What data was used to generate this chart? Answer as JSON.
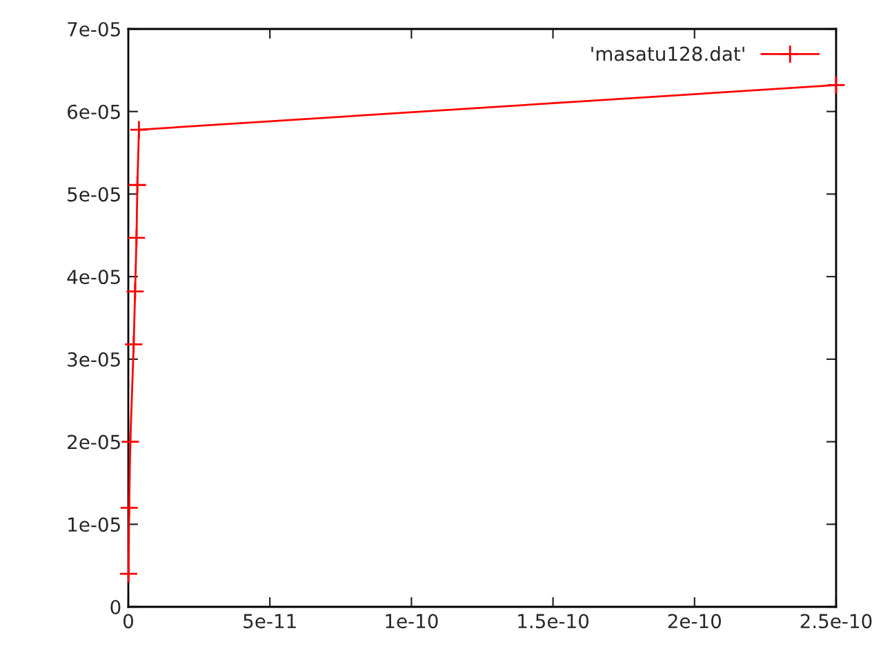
{
  "chart_data": {
    "type": "line",
    "marker": "cross",
    "legend": "top right",
    "grid": false,
    "series": [
      {
        "name": "'masatu128.dat'",
        "color": "#ff0000",
        "x": [
          1e-13,
          3e-13,
          7e-13,
          1.9e-12,
          2.4e-12,
          2.9e-12,
          3.2e-12,
          3.75e-12,
          2.5e-10
        ],
        "values": [
          4e-06,
          1.2e-05,
          2e-05,
          3.18e-05,
          3.82e-05,
          4.47e-05,
          5.11e-05,
          5.78e-05,
          6.32e-05
        ]
      }
    ],
    "xlim": [
      0,
      2.5e-10
    ],
    "xticks": [
      0,
      {
        "value": 5e-11,
        "label": "5e-11"
      },
      {
        "value": 1e-10,
        "label": "1e-10"
      },
      {
        "value": 1.5e-10,
        "label": "1.5e-10"
      },
      {
        "value": 2e-10,
        "label": "2e-10"
      },
      {
        "value": 2.5e-10,
        "label": "2.5e-10"
      }
    ],
    "ylim": [
      0,
      7e-05
    ],
    "yticks": [
      0,
      {
        "value": 1e-05,
        "label": "1e-05"
      },
      {
        "value": 2e-05,
        "label": "2e-05"
      },
      {
        "value": 3e-05,
        "label": "3e-05"
      },
      {
        "value": 4e-05,
        "label": "4e-05"
      },
      {
        "value": 5e-05,
        "label": "5e-05"
      },
      {
        "value": 6e-05,
        "label": "6e-05"
      },
      {
        "value": 7e-05,
        "label": "7e-05"
      }
    ]
  }
}
